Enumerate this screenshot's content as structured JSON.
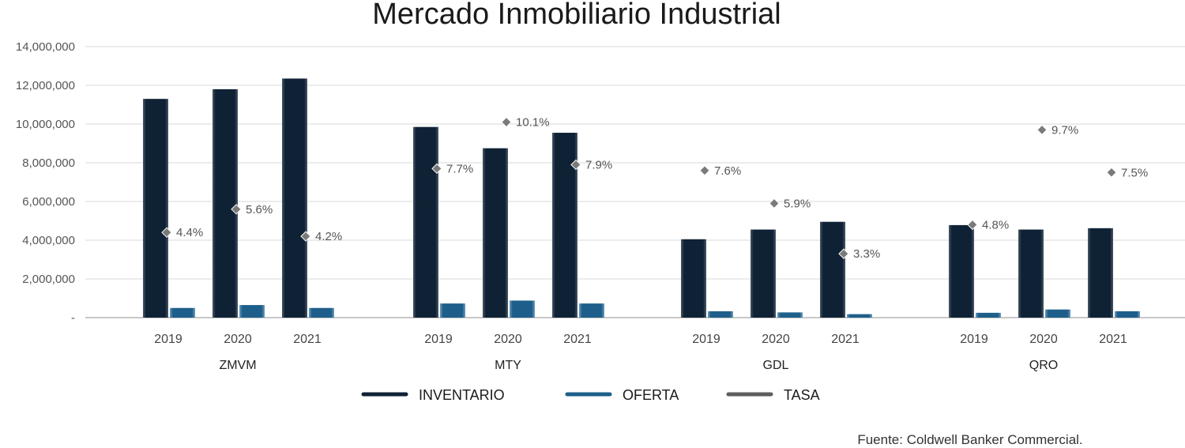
{
  "chart_data": {
    "type": "bar",
    "title": "Mercado Inmobiliario Industrial",
    "source": "Fuente: Coldwell Banker Commercial.",
    "ylim": [
      0,
      14000000
    ],
    "yticks": [
      "-",
      "2,000,000",
      "4,000,000",
      "6,000,000",
      "8,000,000",
      "10,000,000",
      "12,000,000",
      "14,000,000"
    ],
    "grid": true,
    "legend_position": "bottom",
    "groups": [
      {
        "name": "ZMVM",
        "years": [
          "2019",
          "2020",
          "2021"
        ],
        "inventario": [
          11300000,
          11800000,
          12350000
        ],
        "oferta": [
          500000,
          650000,
          500000
        ],
        "tasa": [
          4.4,
          5.6,
          4.2
        ],
        "tasa_labels": [
          "4.4%",
          "5.6%",
          "4.2%"
        ]
      },
      {
        "name": "MTY",
        "years": [
          "2019",
          "2020",
          "2021"
        ],
        "inventario": [
          9850000,
          8750000,
          9550000
        ],
        "oferta": [
          730000,
          880000,
          730000
        ],
        "tasa": [
          7.7,
          10.1,
          7.9
        ],
        "tasa_labels": [
          "7.7%",
          "10.1%",
          "7.9%"
        ]
      },
      {
        "name": "GDL",
        "years": [
          "2019",
          "2020",
          "2021"
        ],
        "inventario": [
          4050000,
          4550000,
          4950000
        ],
        "oferta": [
          330000,
          270000,
          180000
        ],
        "tasa": [
          7.6,
          5.9,
          3.3
        ],
        "tasa_labels": [
          "7.6%",
          "5.9%",
          "3.3%"
        ]
      },
      {
        "name": "QRO",
        "years": [
          "2019",
          "2020",
          "2021"
        ],
        "inventario": [
          4780000,
          4550000,
          4620000
        ],
        "oferta": [
          250000,
          420000,
          330000
        ],
        "tasa": [
          4.8,
          9.7,
          7.5
        ],
        "tasa_labels": [
          "4.8%",
          "9.7%",
          "7.5%"
        ]
      }
    ],
    "series": [
      {
        "name": "INVENTARIO",
        "color": "#0f2235"
      },
      {
        "name": "OFERTA",
        "color": "#1d5f8a"
      },
      {
        "name": "TASA",
        "color": "#5e5e5e"
      }
    ]
  }
}
